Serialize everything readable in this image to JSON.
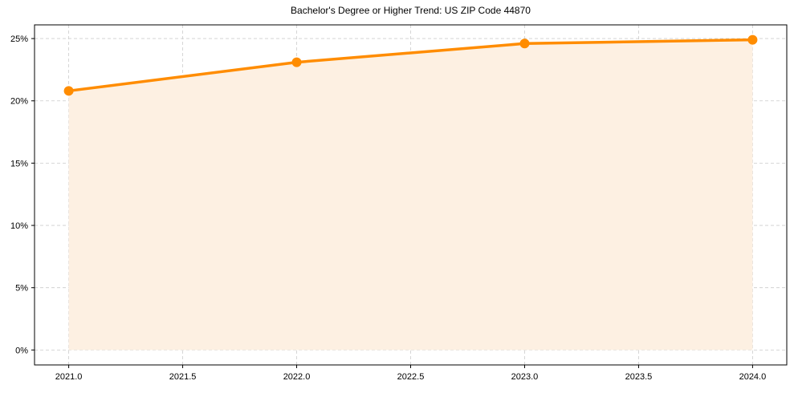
{
  "chart_data": {
    "type": "line",
    "title": "Bachelor's Degree or Higher Trend: US ZIP Code 44870",
    "xlabel": "",
    "ylabel": "",
    "x": [
      2021.0,
      2022.0,
      2023.0,
      2024.0
    ],
    "series": [
      {
        "name": "Bachelor's Degree or Higher",
        "values": [
          20.8,
          23.1,
          24.6,
          24.9
        ],
        "color": "#ff8c00",
        "fill": "#fdf0e2"
      }
    ],
    "xlim": [
      2020.85,
      2024.15
    ],
    "ylim": [
      -1.2,
      26.1
    ],
    "xticks": [
      2021.0,
      2021.5,
      2022.0,
      2022.5,
      2023.0,
      2023.5,
      2024.0
    ],
    "xtick_labels": [
      "2021.0",
      "2021.5",
      "2022.0",
      "2022.5",
      "2023.0",
      "2023.5",
      "2024.0"
    ],
    "yticks": [
      0,
      5,
      10,
      15,
      20,
      25
    ],
    "ytick_labels": [
      "0%",
      "5%",
      "10%",
      "15%",
      "20%",
      "25%"
    ],
    "grid": true,
    "legend": null
  }
}
